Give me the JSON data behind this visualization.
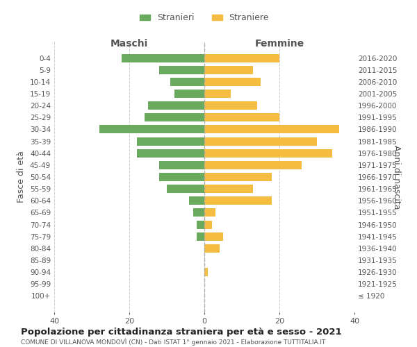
{
  "age_groups": [
    "100+",
    "95-99",
    "90-94",
    "85-89",
    "80-84",
    "75-79",
    "70-74",
    "65-69",
    "60-64",
    "55-59",
    "50-54",
    "45-49",
    "40-44",
    "35-39",
    "30-34",
    "25-29",
    "20-24",
    "15-19",
    "10-14",
    "5-9",
    "0-4"
  ],
  "birth_years": [
    "≤ 1920",
    "1921-1925",
    "1926-1930",
    "1931-1935",
    "1936-1940",
    "1941-1945",
    "1946-1950",
    "1951-1955",
    "1956-1960",
    "1961-1965",
    "1966-1970",
    "1971-1975",
    "1976-1980",
    "1981-1985",
    "1986-1990",
    "1991-1995",
    "1996-2000",
    "2001-2005",
    "2006-2010",
    "2011-2015",
    "2016-2020"
  ],
  "maschi": [
    0,
    0,
    0,
    0,
    0,
    2,
    2,
    3,
    4,
    10,
    12,
    12,
    18,
    18,
    28,
    16,
    15,
    8,
    9,
    12,
    22
  ],
  "femmine": [
    0,
    0,
    1,
    0,
    4,
    5,
    2,
    3,
    18,
    13,
    18,
    26,
    34,
    30,
    36,
    20,
    14,
    7,
    15,
    13,
    20
  ],
  "color_maschi": "#6aaa5e",
  "color_femmine": "#f5bc42",
  "xlim": 40,
  "title": "Popolazione per cittadinanza straniera per età e sesso - 2021",
  "subtitle": "COMUNE DI VILLANOVA MONDOVÌ (CN) - Dati ISTAT 1° gennaio 2021 - Elaborazione TUTTITALIA.IT",
  "ylabel_left": "Fasce di età",
  "ylabel_right": "Anni di nascita",
  "label_maschi": "Stranieri",
  "label_femmine": "Straniere",
  "header_maschi": "Maschi",
  "header_femmine": "Femmine",
  "bg_color": "#ffffff",
  "grid_color": "#cccccc",
  "text_color": "#555555",
  "center_line_color": "#aaaaaa"
}
